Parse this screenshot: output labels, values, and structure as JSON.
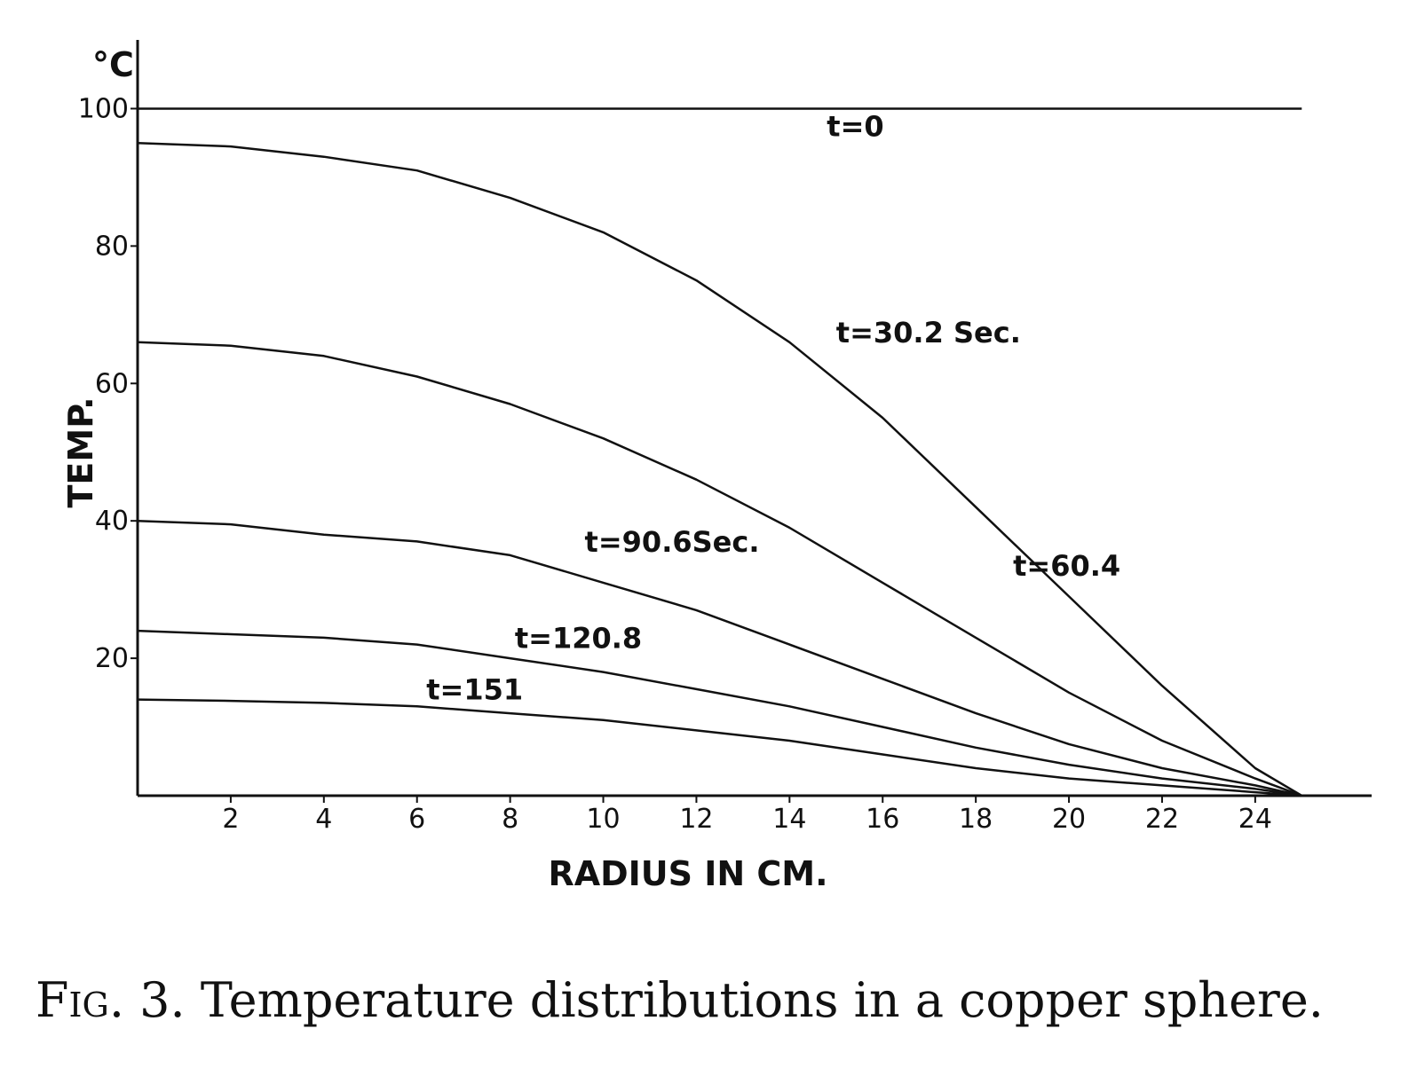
{
  "chart_data": {
    "type": "line",
    "xlabel": "RADIUS IN CM.",
    "ylabel": "TEMP.",
    "yunit": "°C",
    "xlim": [
      0,
      26.5
    ],
    "ylim": [
      0,
      110
    ],
    "xticks": [
      2,
      4,
      6,
      8,
      10,
      12,
      14,
      16,
      18,
      20,
      22,
      24
    ],
    "yticks": [
      20,
      40,
      60,
      80,
      100
    ],
    "grid": false,
    "legend": "none",
    "series": [
      {
        "name": "t=0",
        "x": [
          0,
          25
        ],
        "y": [
          100,
          100
        ]
      },
      {
        "name": "t=30.2 Sec.",
        "x": [
          0,
          2,
          4,
          6,
          8,
          10,
          12,
          14,
          16,
          18,
          20,
          22,
          24,
          25
        ],
        "y": [
          95,
          94.5,
          93,
          91,
          87,
          82,
          75,
          66,
          55,
          42,
          29,
          16,
          4,
          0
        ]
      },
      {
        "name": "t=60.4",
        "x": [
          0,
          2,
          4,
          6,
          8,
          10,
          12,
          14,
          16,
          18,
          20,
          22,
          24,
          25
        ],
        "y": [
          66,
          65.5,
          64,
          61,
          57,
          52,
          46,
          39,
          31,
          23,
          15,
          8,
          2.5,
          0
        ]
      },
      {
        "name": "t=90.6Sec.",
        "x": [
          0,
          2,
          4,
          6,
          8,
          10,
          12,
          14,
          16,
          18,
          20,
          22,
          24,
          25
        ],
        "y": [
          40,
          39.5,
          38,
          37,
          35,
          31,
          27,
          22,
          17,
          12,
          7.5,
          4,
          1.5,
          0
        ]
      },
      {
        "name": "t=120.8",
        "x": [
          0,
          2,
          4,
          6,
          8,
          10,
          12,
          14,
          16,
          18,
          20,
          22,
          24,
          25
        ],
        "y": [
          24,
          23.5,
          23,
          22,
          20,
          18,
          15.5,
          13,
          10,
          7,
          4.5,
          2.5,
          1,
          0
        ]
      },
      {
        "name": "t=151",
        "x": [
          0,
          2,
          4,
          6,
          8,
          10,
          12,
          14,
          16,
          18,
          20,
          22,
          24,
          25
        ],
        "y": [
          14,
          13.8,
          13.5,
          13,
          12,
          11,
          9.5,
          8,
          6,
          4,
          2.5,
          1.5,
          0.5,
          0
        ]
      }
    ],
    "annotations": [
      {
        "text": "t=0",
        "x": 14.8,
        "y": 96,
        "series": 0
      },
      {
        "text": "t=30.2 Sec.",
        "x": 15.0,
        "y": 66,
        "series": 1
      },
      {
        "text": "t=60.4",
        "x": 18.8,
        "y": 32,
        "series": 2
      },
      {
        "text": "t=90.6Sec.",
        "x": 9.6,
        "y": 35.5,
        "series": 3
      },
      {
        "text": "t=120.8",
        "x": 8.1,
        "y": 21.5,
        "series": 4
      },
      {
        "text": "t=151",
        "x": 6.2,
        "y": 14,
        "series": 5
      }
    ]
  },
  "caption": {
    "prefix": "Fig. 3.",
    "text": "Temperature distributions in a copper sphere."
  }
}
